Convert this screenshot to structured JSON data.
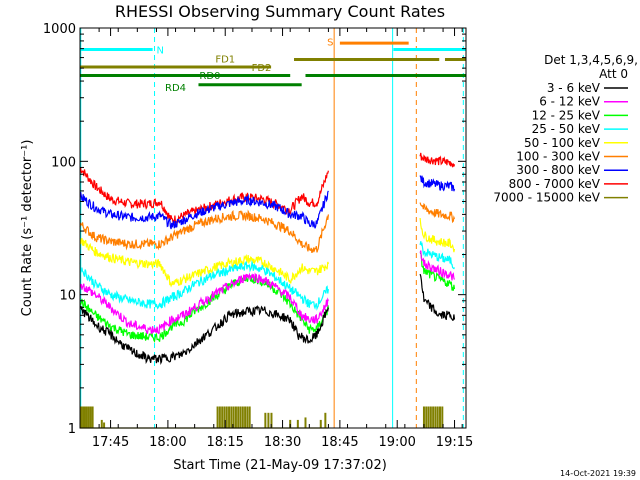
{
  "chart_data": {
    "type": "line",
    "title": "RHESSI Observing Summary Count Rates",
    "xlabel": "Start Time (21-May-09 17:37:02)",
    "ylabel": "Count Rate (s⁻¹ detector⁻¹)",
    "yscale": "log",
    "ylim": [
      1,
      1000
    ],
    "xlim_min_after_1737": [
      0,
      101
    ],
    "x_ticks": [
      {
        "label": "17:45",
        "t": 8
      },
      {
        "label": "18:00",
        "t": 23
      },
      {
        "label": "18:15",
        "t": 38
      },
      {
        "label": "18:30",
        "t": 53
      },
      {
        "label": "18:45",
        "t": 68
      },
      {
        "label": "19:00",
        "t": 83
      },
      {
        "label": "19:15",
        "t": 98
      }
    ],
    "y_ticks": [
      {
        "label": "1",
        "v": 1
      },
      {
        "label": "10",
        "v": 10
      },
      {
        "label": "100",
        "v": 100
      },
      {
        "label": "1000",
        "v": 1000
      }
    ],
    "legend": {
      "header_line1": "Det 1,3,4,5,6,9,",
      "header_line2": "Att 0",
      "position": "right"
    },
    "data_gap": [
      {
        "start": 65,
        "end": 79
      },
      {
        "start": 79,
        "end": 89
      }
    ],
    "series": [
      {
        "name": "3 - 6 keV",
        "color": "#000000",
        "segs": [
          {
            "t": [
              0,
              4,
              8,
              13,
              18,
              21,
              26,
              28,
              31,
              35,
              39,
              44,
              48,
              52,
              55,
              57,
              60,
              62,
              65
            ],
            "v": [
              8,
              6,
              5,
              3.8,
              3.3,
              3.3,
              3.5,
              3.8,
              4.5,
              5.5,
              7,
              7.5,
              7.6,
              7,
              6.5,
              5,
              4.5,
              5,
              8
            ]
          },
          {
            "t": [
              89,
              90,
              92,
              94,
              97,
              98
            ],
            "v": [
              15,
              9,
              8,
              7,
              7,
              6.5
            ]
          }
        ]
      },
      {
        "name": "6 - 12 keV",
        "color": "#ff00ff",
        "segs": [
          {
            "t": [
              0,
              4,
              8,
              13,
              18,
              21,
              24,
              27,
              30,
              35,
              40,
              44,
              48,
              52,
              55,
              58,
              60,
              62,
              65
            ],
            "v": [
              12,
              10,
              8,
              6,
              5.5,
              5.5,
              6.5,
              7,
              8,
              10,
              12,
              14,
              13,
              11,
              9.5,
              7,
              6.5,
              6.5,
              9
            ]
          },
          {
            "t": [
              89,
              90,
              92,
              94,
              97,
              98
            ],
            "v": [
              22,
              17,
              16,
              15,
              14,
              13
            ]
          }
        ]
      },
      {
        "name": "12 - 25 keV",
        "color": "#00ff00",
        "segs": [
          {
            "t": [
              0,
              4,
              8,
              13,
              18,
              21,
              24,
              27,
              30,
              35,
              40,
              44,
              48,
              52,
              55,
              58,
              60,
              62,
              65
            ],
            "v": [
              9,
              7,
              5.8,
              5,
              4.8,
              4.8,
              5.8,
              6.3,
              7.5,
              9.5,
              12,
              13.5,
              12.5,
              10.5,
              8.5,
              6.5,
              5.5,
              5.5,
              8
            ]
          },
          {
            "t": [
              89,
              90,
              92,
              94,
              97,
              98
            ],
            "v": [
              20,
              15,
              14,
              13,
              12,
              11
            ]
          }
        ]
      },
      {
        "name": "25 - 50 keV",
        "color": "#00ffff",
        "segs": [
          {
            "t": [
              0,
              4,
              8,
              13,
              18,
              21,
              24,
              27,
              30,
              35,
              40,
              44,
              48,
              52,
              55,
              58,
              60,
              62,
              65
            ],
            "v": [
              16,
              12,
              10,
              9,
              8.5,
              8.5,
              9.5,
              10.5,
              12,
              14,
              15.5,
              16.5,
              15.5,
              13,
              11,
              9.5,
              8.5,
              8.5,
              11
            ]
          },
          {
            "t": [
              89,
              90,
              92,
              94,
              97,
              98
            ],
            "v": [
              25,
              21,
              20,
              19,
              18,
              16
            ]
          }
        ]
      },
      {
        "name": "50 - 100 keV",
        "color": "#ffff00",
        "segs": [
          {
            "t": [
              0,
              4,
              8,
              13,
              18,
              21,
              24,
              27,
              30,
              35,
              40,
              44,
              48,
              52,
              55,
              58,
              60,
              62,
              65
            ],
            "v": [
              26,
              21,
              19,
              17.5,
              17,
              17,
              12,
              13,
              14,
              16,
              17.5,
              18.5,
              17.5,
              15,
              13,
              16,
              15,
              15,
              17
            ]
          },
          {
            "t": [
              89,
              90,
              92,
              94,
              97,
              98
            ],
            "v": [
              35,
              28,
              26,
              25,
              24,
              22
            ]
          }
        ]
      },
      {
        "name": "100 - 300 keV",
        "color": "#ff7f00",
        "segs": [
          {
            "t": [
              0,
              4,
              8,
              13,
              18,
              21,
              24,
              27,
              30,
              35,
              40,
              44,
              48,
              52,
              55,
              58,
              60,
              62,
              65
            ],
            "v": [
              34,
              27,
              25,
              24,
              24,
              24,
              27,
              30,
              33,
              37,
              39,
              39,
              37,
              33,
              30,
              24,
              22,
              22,
              40
            ]
          },
          {
            "t": [
              89,
              90,
              92,
              94,
              97,
              98
            ],
            "v": [
              50,
              44,
              42,
              40,
              39,
              37
            ]
          }
        ]
      },
      {
        "name": "300 - 800 keV",
        "color": "#0000ff",
        "segs": [
          {
            "t": [
              0,
              4,
              8,
              13,
              18,
              21,
              24,
              27,
              30,
              35,
              40,
              44,
              48,
              52,
              55,
              58,
              60,
              62,
              65
            ],
            "v": [
              55,
              45,
              40,
              38,
              38,
              39,
              33,
              36,
              40,
              45,
              49,
              51,
              49,
              45,
              40,
              39,
              34,
              34,
              60
            ]
          },
          {
            "t": [
              89,
              90,
              92,
              94,
              97,
              98
            ],
            "v": [
              75,
              70,
              68,
              66,
              65,
              62
            ]
          }
        ]
      },
      {
        "name": "800 - 7000 keV",
        "color": "#ff0000",
        "segs": [
          {
            "t": [
              0,
              4,
              8,
              13,
              18,
              21,
              24,
              27,
              30,
              35,
              40,
              44,
              48,
              52,
              55,
              58,
              60,
              62,
              65
            ],
            "v": [
              90,
              65,
              52,
              48,
              48,
              50,
              36,
              39,
              42,
              47,
              52,
              54,
              52,
              47,
              43,
              55,
              49,
              49,
              85
            ]
          },
          {
            "t": [
              89,
              90,
              92,
              94,
              97,
              98
            ],
            "v": [
              110,
              105,
              103,
              100,
              98,
              95
            ]
          }
        ]
      },
      {
        "name": "7000 - 15000 keV",
        "color": "#808000",
        "segs": [
          {
            "t": [
              0,
              4,
              8,
              13,
              18,
              21,
              24,
              27,
              30,
              35,
              40,
              44,
              48,
              52,
              55,
              58,
              60,
              62,
              65
            ],
            "v": [
              1,
              1,
              1,
              1,
              1,
              1,
              1,
              1,
              1,
              1,
              1,
              1,
              1,
              1,
              1,
              1,
              1,
              1,
              1
            ]
          }
        ]
      }
    ],
    "spikes_7000": [
      {
        "t": 0.3,
        "v": 1.45
      },
      {
        "t": 0.8,
        "v": 1.45
      },
      {
        "t": 1.3,
        "v": 1.45
      },
      {
        "t": 1.8,
        "v": 1.45
      },
      {
        "t": 2.3,
        "v": 1.45
      },
      {
        "t": 2.8,
        "v": 1.45
      },
      {
        "t": 3.3,
        "v": 1.45
      },
      {
        "t": 5.7,
        "v": 1.15
      },
      {
        "t": 6.3,
        "v": 1.1
      },
      {
        "t": 36.0,
        "v": 1.45
      },
      {
        "t": 36.6,
        "v": 1.45
      },
      {
        "t": 37.2,
        "v": 1.45
      },
      {
        "t": 37.8,
        "v": 1.45
      },
      {
        "t": 38.4,
        "v": 1.45
      },
      {
        "t": 39.0,
        "v": 1.45
      },
      {
        "t": 39.6,
        "v": 1.45
      },
      {
        "t": 40.2,
        "v": 1.45
      },
      {
        "t": 40.8,
        "v": 1.45
      },
      {
        "t": 41.4,
        "v": 1.45
      },
      {
        "t": 42.0,
        "v": 1.45
      },
      {
        "t": 42.6,
        "v": 1.45
      },
      {
        "t": 43.2,
        "v": 1.45
      },
      {
        "t": 43.8,
        "v": 1.45
      },
      {
        "t": 44.4,
        "v": 1.45
      },
      {
        "t": 48.5,
        "v": 1.3
      },
      {
        "t": 49.3,
        "v": 1.3
      },
      {
        "t": 50.1,
        "v": 1.3
      },
      {
        "t": 55.0,
        "v": 1.15
      },
      {
        "t": 57.0,
        "v": 1.15
      },
      {
        "t": 59.0,
        "v": 1.2
      },
      {
        "t": 63.0,
        "v": 1.15
      },
      {
        "t": 64.2,
        "v": 1.3
      },
      {
        "t": 90.0,
        "v": 1.45
      },
      {
        "t": 90.6,
        "v": 1.45
      },
      {
        "t": 91.2,
        "v": 1.45
      },
      {
        "t": 91.8,
        "v": 1.45
      },
      {
        "t": 92.4,
        "v": 1.45
      },
      {
        "t": 93.0,
        "v": 1.45
      },
      {
        "t": 93.6,
        "v": 1.45
      },
      {
        "t": 94.2,
        "v": 1.45
      },
      {
        "t": 94.8,
        "v": 1.45
      }
    ],
    "flags": [
      {
        "label": "N",
        "color": "#00ffff",
        "segs": [
          {
            "start": 0,
            "end": 19
          },
          {
            "start": 82,
            "end": 101
          }
        ],
        "level": 690,
        "label_t": 21,
        "label_level": 690
      },
      {
        "label": "S",
        "color": "#ff7f00",
        "segs": [
          {
            "start": 68,
            "end": 86
          }
        ],
        "level": 770,
        "label_t": 65.5,
        "label_level": 790
      },
      {
        "label": "FD1",
        "color": "#808000",
        "segs": [
          {
            "start": 0,
            "end": 50
          }
        ],
        "level": 510,
        "label_t": 38,
        "label_level": 590
      },
      {
        "label": "FD2",
        "color": "#808000",
        "segs": [
          {
            "start": 56,
            "end": 94
          },
          {
            "start": 95.5,
            "end": 101
          }
        ],
        "level": 580,
        "label_t": 47.5,
        "label_level": 510
      },
      {
        "label": "RD0",
        "color": "#008000",
        "segs": [
          {
            "start": 0,
            "end": 55
          },
          {
            "start": 59,
            "end": 101
          }
        ],
        "level": 440,
        "label_t": 34,
        "label_level": 445
      },
      {
        "label": "RD4",
        "color": "#008000",
        "segs": [
          {
            "start": 31,
            "end": 58
          }
        ],
        "level": 375,
        "label_t": 25,
        "label_level": 360
      }
    ],
    "vlines": [
      {
        "t": 0.2,
        "color": "#00ffff",
        "style": "solid"
      },
      {
        "t": 19.5,
        "color": "#00ffff",
        "style": "dashed"
      },
      {
        "t": 66.5,
        "color": "#ff7f00",
        "style": "solid"
      },
      {
        "t": 81.8,
        "color": "#00ffff",
        "style": "solid"
      },
      {
        "t": 88.0,
        "color": "#ff7f00",
        "style": "dashed"
      },
      {
        "t": 100.3,
        "color": "#00ffff",
        "style": "dashed"
      }
    ],
    "footer_date": "14-Oct-2021 19:39"
  }
}
